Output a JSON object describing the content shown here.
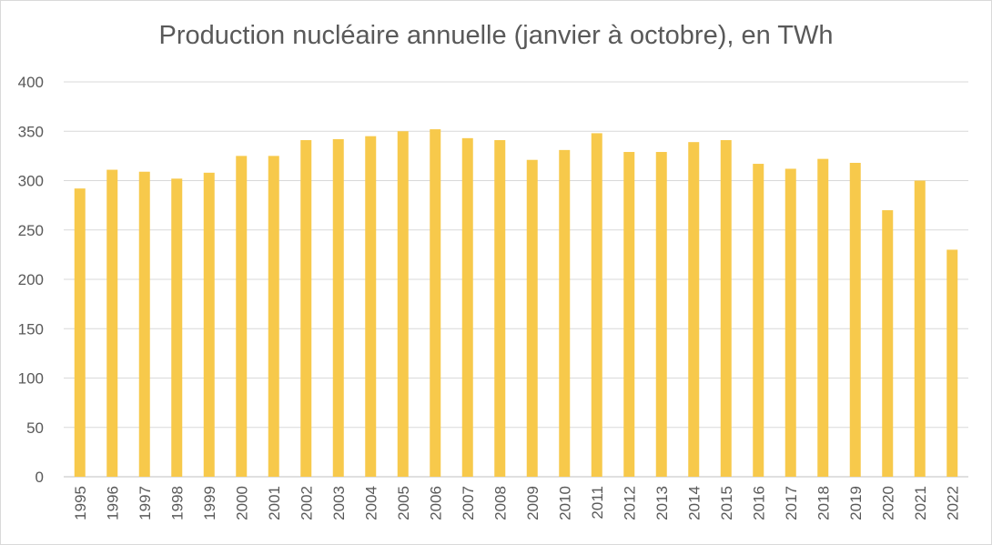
{
  "chart_data": {
    "type": "bar",
    "title": "Production nucléaire annuelle (janvier à octobre), en TWh",
    "xlabel": "",
    "ylabel": "",
    "categories": [
      "1995",
      "1996",
      "1997",
      "1998",
      "1999",
      "2000",
      "2001",
      "2002",
      "2003",
      "2004",
      "2005",
      "2006",
      "2007",
      "2008",
      "2009",
      "2010",
      "2011",
      "2012",
      "2013",
      "2014",
      "2015",
      "2016",
      "2017",
      "2018",
      "2019",
      "2020",
      "2021",
      "2022"
    ],
    "values": [
      292,
      311,
      309,
      302,
      308,
      325,
      325,
      341,
      342,
      345,
      350,
      352,
      343,
      341,
      321,
      331,
      348,
      329,
      329,
      339,
      341,
      317,
      312,
      322,
      318,
      270,
      300,
      230
    ],
    "ylim": [
      0,
      400
    ],
    "yticks": [
      0,
      50,
      100,
      150,
      200,
      250,
      300,
      350,
      400
    ],
    "grid": true,
    "legend": "none",
    "bar_color": "#f7c94b",
    "grid_color": "#d9d9d9",
    "text_color": "#595959"
  }
}
